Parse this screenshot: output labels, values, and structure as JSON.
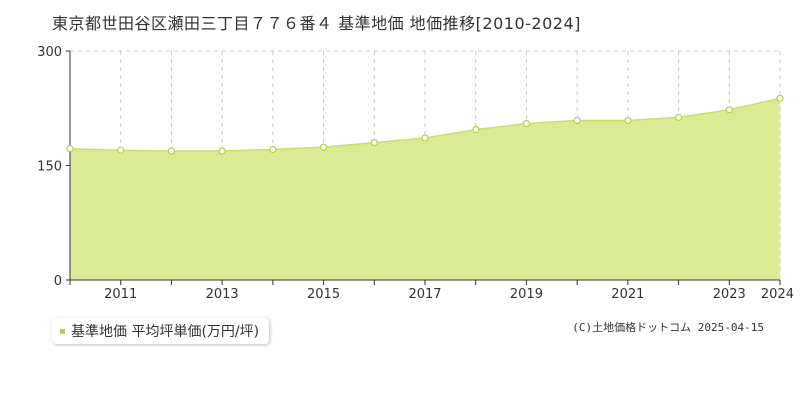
{
  "title": "東京都世田谷区瀬田三丁目７７６番４ 基準地価 地価推移[2010-2024]",
  "legend": {
    "label": "基準地価 平均坪単価(万円/坪)"
  },
  "copyright": "(C)土地価格ドットコム 2025-04-15",
  "colors": {
    "fill": "#dbeb94",
    "line": "#c8e06a",
    "marker_fill": "#ffffff",
    "marker_stroke": "#b5d24a",
    "grid": "#c8c8c8",
    "axis": "#333333"
  },
  "chart_data": {
    "type": "area",
    "title": "",
    "xlabel": "",
    "ylabel": "",
    "x": [
      2010,
      2011,
      2012,
      2013,
      2014,
      2015,
      2016,
      2017,
      2018,
      2019,
      2020,
      2021,
      2022,
      2023,
      2024
    ],
    "series": [
      {
        "values": [
          172,
          170,
          169,
          169,
          171,
          174,
          180,
          186,
          197,
          205,
          209,
          209,
          213,
          223,
          238
        ]
      }
    ],
    "ylim": [
      0,
      300
    ],
    "xlim": [
      2010,
      2024
    ],
    "y_ticks": [
      "0",
      "150",
      "300"
    ],
    "x_tick_labels": [
      "2011",
      "2013",
      "2015",
      "2017",
      "2019",
      "2021",
      "2023",
      "2024"
    ],
    "grid": true
  }
}
